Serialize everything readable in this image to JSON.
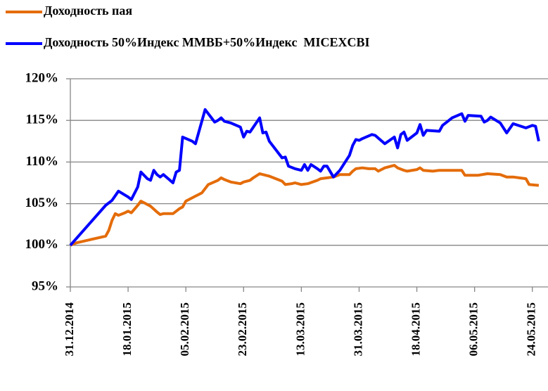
{
  "chart_data": {
    "type": "line",
    "series": [
      {
        "name": "Доходность пая",
        "color": "#e46c0a",
        "x": [
          "31.12.2014",
          "02.01.2015",
          "11.01.2015",
          "12.01.2015",
          "13.01.2015",
          "14.01.2015",
          "15.01.2015",
          "17.01.2015",
          "18.01.2015",
          "19.01.2015",
          "21.01.2015",
          "22.01.2015",
          "23.01.2015",
          "25.01.2015",
          "27.01.2015",
          "28.01.2015",
          "29.01.2015",
          "01.02.2015",
          "02.02.2015",
          "03.02.2015",
          "04.02.2015",
          "05.02.2015",
          "08.02.2015",
          "09.02.2015",
          "10.02.2015",
          "12.02.2015",
          "15.02.2015",
          "16.02.2015",
          "17.02.2015",
          "19.02.2015",
          "22.02.2015",
          "23.02.2015",
          "25.02.2015",
          "26.02.2015",
          "28.02.2015",
          "01.03.2015",
          "03.03.2015",
          "07.03.2015",
          "08.03.2015",
          "10.03.2015",
          "11.03.2015",
          "13.03.2015",
          "15.03.2015",
          "18.03.2015",
          "19.03.2015",
          "23.03.2015",
          "25.03.2015",
          "28.03.2015",
          "29.03.2015",
          "30.03.2015",
          "01.04.2015",
          "03.04.2015",
          "05.04.2015",
          "06.04.2015",
          "08.04.2015",
          "11.04.2015",
          "12.04.2015",
          "14.04.2015",
          "15.04.2015",
          "18.04.2015",
          "19.04.2015",
          "20.04.2015",
          "23.04.2015",
          "25.04.2015",
          "26.04.2015",
          "29.04.2015",
          "02.05.2015",
          "03.05.2015",
          "05.05.2015",
          "07.05.2015",
          "10.05.2015",
          "14.05.2015",
          "16.05.2015",
          "18.05.2015",
          "22.05.2015",
          "23.05.2015",
          "26.05.2015"
        ],
        "values": [
          100,
          100.3,
          101.1,
          101.8,
          103.0,
          103.8,
          103.6,
          103.9,
          104.1,
          103.9,
          104.8,
          105.3,
          105.1,
          104.7,
          104.0,
          103.7,
          103.8,
          103.8,
          104.1,
          104.4,
          104.6,
          105.3,
          105.9,
          106.1,
          106.3,
          107.3,
          107.8,
          108.1,
          107.9,
          107.6,
          107.4,
          107.6,
          107.8,
          108.1,
          108.6,
          108.5,
          108.3,
          107.7,
          107.3,
          107.4,
          107.5,
          107.3,
          107.4,
          107.8,
          108.0,
          108.2,
          108.5,
          108.5,
          108.9,
          109.2,
          109.3,
          109.2,
          109.2,
          108.9,
          109.3,
          109.6,
          109.3,
          109.0,
          108.9,
          109.1,
          109.3,
          109.0,
          108.9,
          109.0,
          109.0,
          109.0,
          109.0,
          108.4,
          108.4,
          108.4,
          108.6,
          108.5,
          108.2,
          108.2,
          108.0,
          107.3,
          107.2
        ]
      },
      {
        "name": "Доходность 50%Индекс ММВБ+50%Индекс  MICEXCBI",
        "color": "#0000ff",
        "x": [
          "31.12.2014",
          "11.01.2015",
          "13.01.2015",
          "15.01.2015",
          "18.01.2015",
          "19.01.2015",
          "21.01.2015",
          "22.01.2015",
          "24.01.2015",
          "25.01.2015",
          "26.01.2015",
          "27.01.2015",
          "28.01.2015",
          "29.01.2015",
          "01.02.2015",
          "02.02.2015",
          "03.02.2015",
          "04.02.2015",
          "07.02.2015",
          "08.02.2015",
          "11.02.2015",
          "14.02.2015",
          "15.02.2015",
          "16.02.2015",
          "17.02.2015",
          "19.02.2015",
          "22.02.2015",
          "23.02.2015",
          "24.02.2015",
          "25.02.2015",
          "28.02.2015",
          "01.03.2015",
          "02.03.2015",
          "03.03.2015",
          "07.03.2015",
          "08.03.2015",
          "09.03.2015",
          "11.03.2015",
          "13.03.2015",
          "14.03.2015",
          "15.03.2015",
          "16.03.2015",
          "18.03.2015",
          "19.03.2015",
          "20.03.2015",
          "21.03.2015",
          "23.03.2015",
          "25.03.2015",
          "28.03.2015",
          "29.03.2015",
          "30.03.2015",
          "31.03.2015",
          "01.04.2015",
          "04.04.2015",
          "05.04.2015",
          "08.04.2015",
          "11.04.2015",
          "12.04.2015",
          "13.04.2015",
          "14.04.2015",
          "15.04.2015",
          "18.04.2015",
          "19.04.2015",
          "20.04.2015",
          "21.04.2015",
          "25.04.2015",
          "26.04.2015",
          "29.04.2015",
          "02.05.2015",
          "03.05.2015",
          "04.05.2015",
          "08.05.2015",
          "09.05.2015",
          "10.05.2015",
          "11.05.2015",
          "14.05.2015",
          "16.05.2015",
          "18.05.2015",
          "22.05.2015",
          "24.05.2015",
          "25.05.2015",
          "26.05.2015"
        ],
        "values": [
          100,
          104.8,
          105.4,
          106.5,
          105.8,
          105.5,
          107.0,
          108.8,
          108.0,
          107.8,
          109.0,
          108.5,
          108.2,
          108.5,
          107.5,
          108.8,
          109.0,
          113.0,
          112.5,
          112.2,
          116.3,
          114.8,
          115.0,
          115.3,
          114.9,
          114.7,
          114.2,
          113.0,
          113.7,
          113.6,
          115.3,
          113.5,
          113.6,
          112.5,
          110.5,
          110.6,
          109.5,
          109.2,
          109.0,
          109.7,
          109.0,
          109.7,
          109.2,
          108.9,
          109.5,
          109.5,
          108.2,
          109.0,
          110.8,
          112.0,
          112.7,
          112.6,
          112.8,
          113.3,
          113.2,
          112.2,
          113.0,
          111.7,
          113.3,
          113.6,
          112.6,
          113.5,
          114.5,
          113.2,
          113.8,
          113.7,
          114.4,
          115.3,
          115.8,
          114.9,
          115.6,
          115.5,
          114.8,
          115.0,
          115.4,
          114.7,
          113.5,
          114.6,
          114.1,
          114.4,
          114.3,
          112.5
        ]
      }
    ],
    "xlim": [
      "31.12.2014",
      "28.05.2015"
    ],
    "xticks": [
      "31.12.2014",
      "18.01.2015",
      "05.02.2015",
      "23.02.2015",
      "13.03.2015",
      "31.03.2015",
      "18.04.2015",
      "06.05.2015",
      "24.05.2015"
    ],
    "ylim": [
      95,
      120
    ],
    "yticks": [
      {
        "value": 95,
        "label": "95%"
      },
      {
        "value": 100,
        "label": "100%"
      },
      {
        "value": 105,
        "label": "105%"
      },
      {
        "value": 110,
        "label": "110%"
      },
      {
        "value": 115,
        "label": "115%"
      },
      {
        "value": 120,
        "label": "120%"
      }
    ],
    "grid": true
  }
}
